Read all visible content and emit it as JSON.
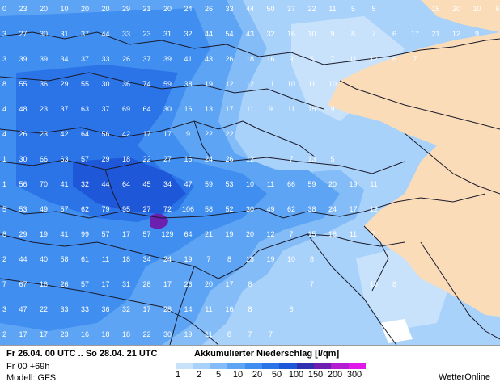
{
  "footer": {
    "period": "Fr 26.04. 00 UTC .. So 28.04. 21 UTC",
    "run": "Fr 00 +69h",
    "model": "Modell: GFS",
    "title": "Akkumulierter Niederschlag [l/qm]",
    "brand": "WetterOnline"
  },
  "legend": {
    "colors": [
      "#ffffff",
      "#c8e2fb",
      "#a9d2fb",
      "#84bcf7",
      "#5ea4f4",
      "#3f8ef0",
      "#2a74e8",
      "#1e58d8",
      "#2f2fb0",
      "#6e1fb0",
      "#b21ed0",
      "#e019e8"
    ],
    "labels": [
      "1",
      "2",
      "5",
      "10",
      "20",
      "50",
      "100",
      "150",
      "200",
      "300"
    ]
  },
  "map": {
    "colors": {
      "land_beige": "#fbdcb8",
      "base": "#a9d2fb",
      "light": "#c8e2fb",
      "mid": "#84bcf7",
      "dark": "#5ea4f4",
      "darker": "#3f8ef0",
      "darkest": "#2a74e8",
      "deep": "#1e58d8",
      "peak": "#6b20b0",
      "border": "#1a1a2a"
    },
    "grid_values": [
      [
        "0",
        "23",
        "20",
        "10",
        "20",
        "20",
        "29",
        "21",
        "20",
        "24",
        "26",
        "33",
        "44",
        "50",
        "37",
        "22",
        "11",
        "5",
        "5",
        "",
        "",
        "16",
        "20",
        "10",
        "6"
      ],
      [
        "3",
        "27",
        "30",
        "31",
        "37",
        "44",
        "33",
        "23",
        "31",
        "32",
        "44",
        "54",
        "43",
        "32",
        "16",
        "10",
        "9",
        "8",
        "7",
        "6",
        "17",
        "21",
        "12",
        "9",
        ""
      ],
      [
        "3",
        "39",
        "39",
        "34",
        "37",
        "33",
        "26",
        "37",
        "39",
        "41",
        "43",
        "26",
        "18",
        "16",
        "9",
        "5",
        "7",
        "11",
        "12",
        "6",
        "7",
        "",
        "",
        "",
        ""
      ],
      [
        "8",
        "55",
        "36",
        "29",
        "55",
        "30",
        "36",
        "74",
        "59",
        "38",
        "19",
        "12",
        "12",
        "11",
        "10",
        "11",
        "10",
        "",
        "",
        "",
        "",
        "",
        "",
        "",
        ""
      ],
      [
        "4",
        "48",
        "23",
        "37",
        "63",
        "37",
        "69",
        "64",
        "30",
        "16",
        "13",
        "17",
        "11",
        "9",
        "11",
        "15",
        "9",
        "",
        "",
        "",
        "",
        "",
        "",
        "",
        ""
      ],
      [
        "4",
        "26",
        "23",
        "42",
        "64",
        "56",
        "42",
        "17",
        "17",
        "9",
        "22",
        "22",
        "",
        "",
        "",
        "",
        "",
        "",
        "",
        "",
        "",
        "",
        "",
        "",
        ""
      ],
      [
        "1",
        "30",
        "66",
        "63",
        "57",
        "29",
        "18",
        "22",
        "27",
        "16",
        "24",
        "26",
        "12",
        "",
        "7",
        "13",
        "5",
        "",
        "",
        "",
        "",
        "",
        "",
        "",
        ""
      ],
      [
        "1",
        "56",
        "70",
        "41",
        "32",
        "44",
        "64",
        "45",
        "34",
        "47",
        "59",
        "53",
        "10",
        "11",
        "66",
        "59",
        "20",
        "19",
        "11",
        "",
        "",
        "",
        "",
        "",
        ""
      ],
      [
        "5",
        "53",
        "49",
        "57",
        "62",
        "79",
        "95",
        "27",
        "72",
        "106",
        "58",
        "52",
        "30",
        "49",
        "62",
        "38",
        "24",
        "17",
        "12",
        "",
        "",
        "",
        "",
        "",
        ""
      ],
      [
        "8",
        "29",
        "19",
        "41",
        "99",
        "57",
        "17",
        "57",
        "129",
        "64",
        "21",
        "19",
        "20",
        "12",
        "7",
        "15",
        "18",
        "11",
        "7",
        "",
        "",
        "",
        "",
        "",
        ""
      ],
      [
        "2",
        "44",
        "40",
        "58",
        "61",
        "11",
        "18",
        "34",
        "24",
        "19",
        "7",
        "8",
        "18",
        "19",
        "10",
        "8",
        "",
        "",
        "",
        "",
        "",
        "",
        "",
        "",
        ""
      ],
      [
        "7",
        "67",
        "16",
        "26",
        "57",
        "17",
        "31",
        "28",
        "17",
        "26",
        "20",
        "17",
        "8",
        "",
        "",
        "7",
        "",
        "",
        "10",
        "8",
        "",
        "",
        "",
        "",
        ""
      ],
      [
        "3",
        "47",
        "22",
        "33",
        "33",
        "36",
        "32",
        "17",
        "28",
        "14",
        "11",
        "16",
        "8",
        "",
        "8",
        "",
        "",
        "",
        "",
        "",
        "",
        "",
        "",
        "",
        ""
      ],
      [
        "2",
        "17",
        "17",
        "23",
        "16",
        "18",
        "18",
        "22",
        "30",
        "19",
        "11",
        "8",
        "7",
        "7",
        "",
        "",
        "",
        "",
        "",
        "",
        "",
        "",
        "",
        "",
        ""
      ]
    ]
  }
}
